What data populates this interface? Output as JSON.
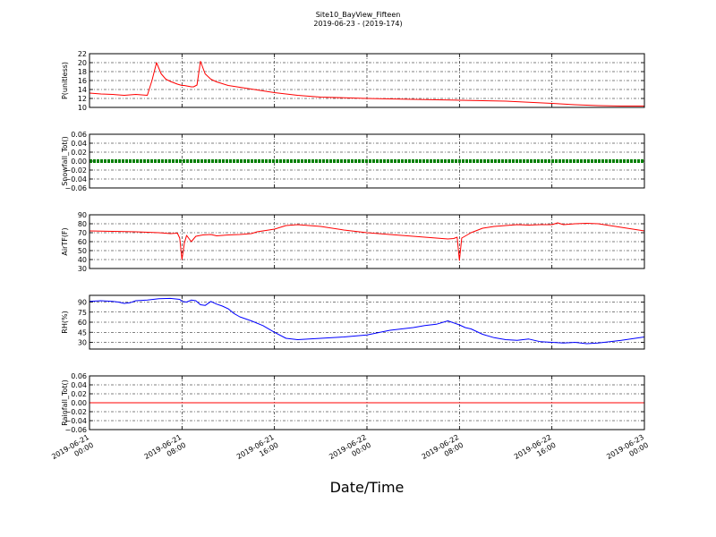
{
  "figure": {
    "title": "Site10_BayView_Fifteen",
    "subtitle": "2019-06-23 - (2019-174)",
    "xlabel": "Date/Time"
  },
  "chart_data": {
    "type": "line",
    "grid": true,
    "x_ticks": [
      {
        "value": 0,
        "label": [
          "2019-06-21",
          "00:00"
        ]
      },
      {
        "value": 8,
        "label": [
          "2019-06-21",
          "08:00"
        ]
      },
      {
        "value": 16,
        "label": [
          "2019-06-21",
          "16:00"
        ]
      },
      {
        "value": 24,
        "label": [
          "2019-06-22",
          "00:00"
        ]
      },
      {
        "value": 32,
        "label": [
          "2019-06-22",
          "08:00"
        ]
      },
      {
        "value": 40,
        "label": [
          "2019-06-22",
          "16:00"
        ]
      },
      {
        "value": 48,
        "label": [
          "2019-06-23",
          "00:00"
        ]
      }
    ],
    "xlim": [
      0,
      48
    ],
    "panels": [
      {
        "ylabel": "P(unitless)",
        "ylim": [
          10,
          22
        ],
        "yticks": [
          10,
          12,
          14,
          16,
          18,
          20,
          22
        ],
        "ytick_labels": [
          "10",
          "12",
          "14",
          "16",
          "18",
          "20",
          "22"
        ],
        "color": "#ff0000",
        "style": "line",
        "x": [
          0,
          1,
          2,
          3,
          4,
          5,
          5.4,
          5.8,
          6.2,
          6.6,
          7,
          7.6,
          8,
          8.2,
          8.4,
          8.6,
          8.8,
          9,
          9.3,
          9.6,
          10,
          10.5,
          11,
          12,
          14,
          16,
          18,
          20,
          24,
          28,
          32,
          36,
          40,
          42,
          44,
          46,
          48
        ],
        "y": [
          13.2,
          13,
          12.9,
          12.7,
          12.9,
          12.7,
          16,
          20,
          17.5,
          16.3,
          15.8,
          15.2,
          14.9,
          14.9,
          14.8,
          14.7,
          14.6,
          14.6,
          15,
          20.3,
          17.5,
          16.3,
          15.7,
          14.9,
          14.1,
          13.3,
          12.7,
          12.3,
          12,
          11.8,
          11.6,
          11.4,
          10.9,
          10.6,
          10.4,
          10.3,
          10.3
        ]
      },
      {
        "ylabel": "Snowfall_Tot()",
        "ylim": [
          -0.06,
          0.06
        ],
        "yticks": [
          -0.06,
          -0.04,
          -0.02,
          0,
          0.02,
          0.04,
          0.06
        ],
        "ytick_labels": [
          "−0.06",
          "−0.04",
          "−0.02",
          "0.00",
          "0.02",
          "0.04",
          "0.06"
        ],
        "color": "#007f00",
        "style": "markers",
        "x": [
          0,
          48
        ],
        "y": [
          0,
          0
        ]
      },
      {
        "ylabel": "AirTF(F)",
        "ylim": [
          30,
          90
        ],
        "yticks": [
          30,
          40,
          50,
          60,
          70,
          80,
          90
        ],
        "ytick_labels": [
          "30",
          "40",
          "50",
          "60",
          "70",
          "80",
          "90"
        ],
        "color": "#ff0000",
        "style": "line",
        "x": [
          0,
          2,
          4,
          6,
          7,
          7.6,
          7.8,
          8,
          8.2,
          8.4,
          8.8,
          9.2,
          9.8,
          10.5,
          11,
          11.5,
          12,
          13,
          14,
          14.5,
          15,
          16,
          17,
          18,
          20,
          22,
          24,
          26,
          28,
          30,
          31,
          31.5,
          31.8,
          32,
          32.2,
          33,
          34,
          35,
          36,
          37,
          38,
          39,
          40,
          40.5,
          41,
          42,
          43,
          44,
          45,
          46,
          48
        ],
        "y": [
          72,
          71.5,
          71,
          70,
          69,
          69.5,
          64,
          40,
          58,
          67,
          60,
          66,
          67.5,
          68,
          66.5,
          67,
          67.5,
          68,
          69,
          71,
          72,
          74,
          78,
          79,
          77,
          73,
          70,
          68,
          66,
          64,
          63,
          63.5,
          65,
          39,
          64,
          70,
          75,
          77,
          78,
          79,
          78.5,
          79,
          79,
          81,
          79,
          80,
          80.5,
          80,
          78,
          76,
          72
        ]
      },
      {
        "ylabel": "RH(%)",
        "ylim": [
          20,
          100
        ],
        "yticks": [
          30,
          45,
          60,
          75,
          90
        ],
        "ytick_labels": [
          "30",
          "45",
          "60",
          "75",
          "90"
        ],
        "color": "#0000ff",
        "style": "line",
        "x": [
          0,
          1,
          2,
          2.5,
          3,
          3.5,
          4,
          5,
          6,
          7,
          7.8,
          8,
          8.4,
          8.8,
          9.2,
          9.6,
          10,
          10.5,
          11,
          11.5,
          12,
          12.5,
          13,
          14,
          15,
          16,
          17,
          18,
          19,
          20,
          22,
          24,
          26,
          28,
          29,
          30,
          31,
          32,
          32.5,
          33,
          34,
          35,
          36,
          37,
          38,
          39,
          40,
          41,
          42,
          43,
          44,
          46,
          48
        ],
        "y": [
          91,
          92,
          91,
          90,
          88,
          89,
          92,
          93,
          95,
          95.5,
          94,
          91,
          90,
          93,
          92,
          86,
          85,
          91,
          87,
          84,
          80,
          73,
          68,
          62,
          55,
          45,
          36,
          34,
          35,
          36,
          38,
          41,
          48,
          52,
          55,
          57,
          62,
          56,
          52,
          50,
          42,
          37,
          34,
          33,
          35,
          31,
          30,
          29,
          30,
          28,
          29,
          33,
          38
        ]
      },
      {
        "ylabel": "Rainfall_Tot()",
        "ylim": [
          -0.06,
          0.06
        ],
        "yticks": [
          -0.06,
          -0.04,
          -0.02,
          0,
          0.02,
          0.04,
          0.06
        ],
        "ytick_labels": [
          "−0.06",
          "−0.04",
          "−0.02",
          "0.00",
          "0.02",
          "0.04",
          "0.06"
        ],
        "color": "#ff0000",
        "style": "line",
        "x": [
          0,
          48
        ],
        "y": [
          0,
          0
        ]
      }
    ]
  }
}
